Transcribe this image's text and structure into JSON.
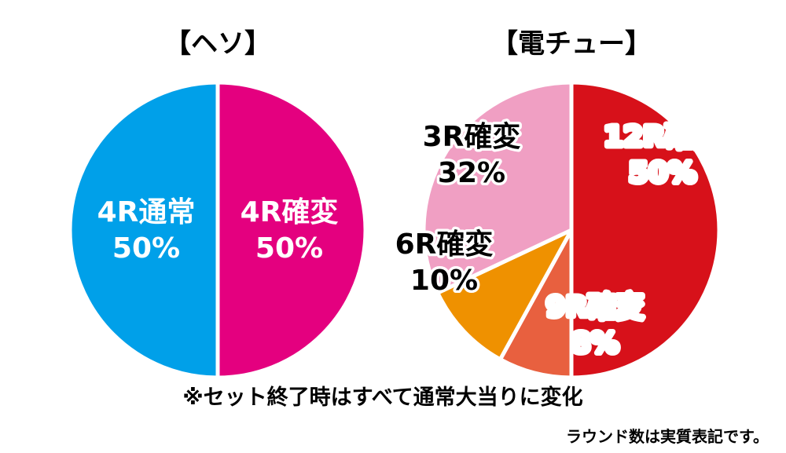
{
  "chart_data": [
    {
      "type": "pie",
      "title": "【ヘソ】",
      "slices": [
        {
          "line1": "4R確変",
          "line2": "50%",
          "value": 50,
          "color": "#e4007f",
          "text_color": "#ffffff",
          "outline_color": ""
        },
        {
          "line1": "4R通常",
          "line2": "50%",
          "value": 50,
          "color": "#00a0e9",
          "text_color": "#ffffff",
          "outline_color": ""
        }
      ]
    },
    {
      "type": "pie",
      "title": "【電チュー】",
      "slices": [
        {
          "line1": "12R確変",
          "line2": "50%",
          "value": 50,
          "color": "#d7111a",
          "text_color": "#ffffff",
          "outline_color": "#d7111a"
        },
        {
          "line1": "9R確変",
          "line2": "8%",
          "value": 8,
          "color": "#e8603f",
          "text_color": "#ffffff",
          "outline_color": "#e8603f"
        },
        {
          "line1": "6R確変",
          "line2": "10%",
          "value": 10,
          "color": "#ef9100",
          "text_color": "#000000",
          "outline_color": "#ef9100"
        },
        {
          "line1": "3R確変",
          "line2": "32%",
          "value": 32,
          "color": "#f09fc3",
          "text_color": "#000000",
          "outline_color": "#ffffff"
        }
      ]
    }
  ],
  "notes": {
    "main": "※セット終了時はすべて通常大当りに変化",
    "sub": "ラウンド数は実質表記です。"
  }
}
